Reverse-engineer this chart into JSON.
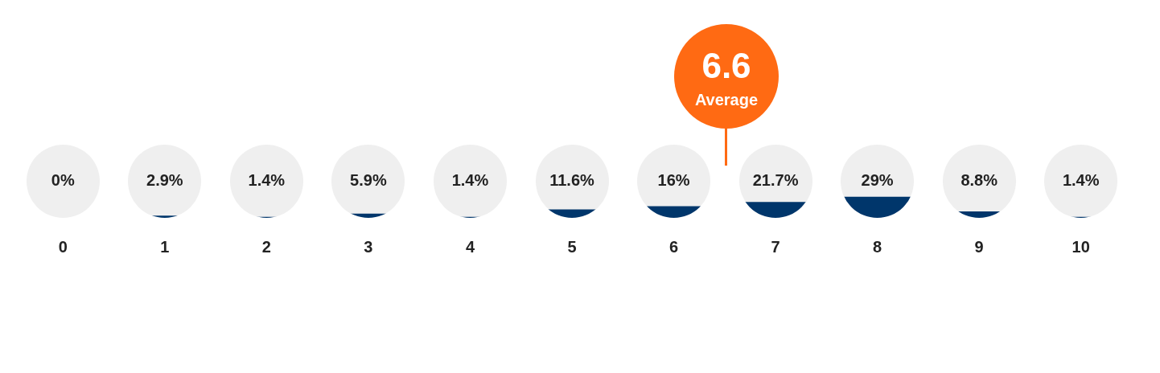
{
  "chart_data": {
    "type": "bar",
    "categories": [
      "0",
      "1",
      "2",
      "3",
      "4",
      "5",
      "6",
      "7",
      "8",
      "9",
      "10"
    ],
    "values": [
      0,
      2.9,
      1.4,
      5.9,
      1.4,
      11.6,
      16,
      21.7,
      29,
      8.8,
      1.4
    ],
    "value_labels": [
      "0%",
      "2.9%",
      "1.4%",
      "5.9%",
      "1.4%",
      "11.6%",
      "16%",
      "21.7%",
      "29%",
      "8.8%",
      "1.4%"
    ],
    "color": "#00366b",
    "annotations": [
      "6.6",
      "Average"
    ],
    "grid": false,
    "legend": false
  }
}
